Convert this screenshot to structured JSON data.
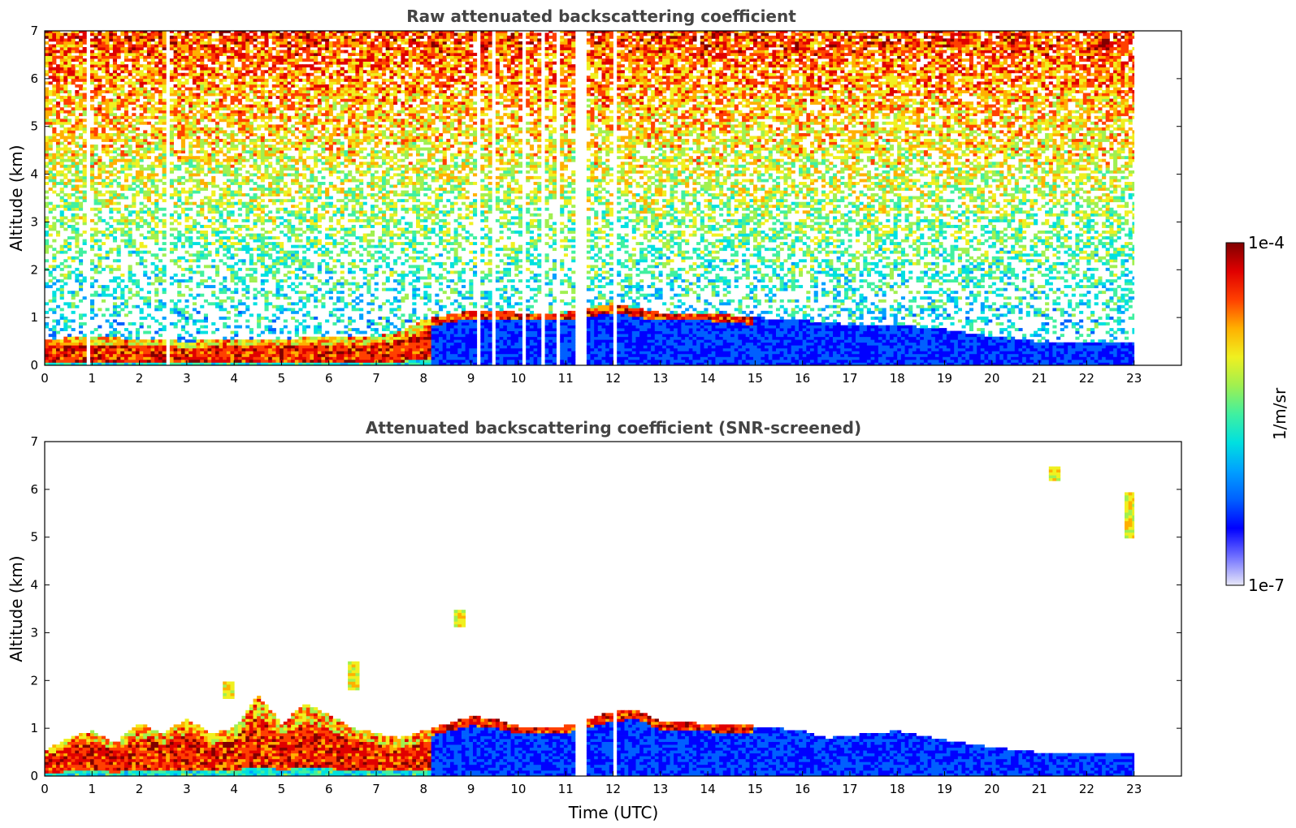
{
  "colors": {
    "colormap": [
      "#e8e8f8",
      "#7070ff",
      "#0000ff",
      "#0060ff",
      "#00a0ff",
      "#00e0e0",
      "#40f0a0",
      "#a0f050",
      "#f0f020",
      "#ffb000",
      "#ff4000",
      "#e00000",
      "#800000"
    ],
    "low_signal": "#1e5be6",
    "frame": "#000000"
  },
  "chart_data": [
    {
      "type": "heatmap",
      "title": "Raw attenuated backscattering coefficient",
      "xlabel": "",
      "ylabel": "Altitude (km)",
      "xlim": [
        0,
        24
      ],
      "ylim": [
        0,
        7
      ],
      "xticks": [
        "0",
        "1",
        "2",
        "3",
        "4",
        "5",
        "6",
        "7",
        "8",
        "9",
        "10",
        "11",
        "12",
        "13",
        "14",
        "15",
        "16",
        "17",
        "18",
        "19",
        "20",
        "21",
        "22",
        "23"
      ],
      "yticks": [
        "0",
        "1",
        "2",
        "3",
        "4",
        "5",
        "6",
        "7"
      ],
      "data_end_hour": 23,
      "gaps_hours": [
        [
          11.2,
          11.42
        ],
        [
          12.0,
          12.12
        ],
        [
          2.55,
          2.65
        ],
        [
          0.9,
          0.95
        ],
        [
          9.15,
          9.2
        ],
        [
          9.45,
          9.55
        ],
        [
          10.1,
          10.2
        ],
        [
          10.5,
          10.6
        ],
        [
          10.8,
          10.88
        ]
      ],
      "boundary_layer_top_km": [
        [
          0,
          0.55
        ],
        [
          1,
          0.6
        ],
        [
          2,
          0.55
        ],
        [
          3,
          0.5
        ],
        [
          4,
          0.55
        ],
        [
          5,
          0.55
        ],
        [
          6,
          0.6
        ],
        [
          7,
          0.6
        ],
        [
          7.5,
          0.7
        ],
        [
          8,
          0.95
        ],
        [
          8.5,
          1.05
        ],
        [
          9,
          1.15
        ],
        [
          9.5,
          1.15
        ],
        [
          10,
          1.1
        ],
        [
          11,
          1.1
        ],
        [
          12,
          1.3
        ],
        [
          12.5,
          1.2
        ],
        [
          13,
          1.1
        ],
        [
          14,
          1.1
        ],
        [
          15,
          1.0
        ],
        [
          16,
          0.95
        ],
        [
          17,
          0.85
        ],
        [
          18,
          0.85
        ],
        [
          19,
          0.75
        ],
        [
          20,
          0.6
        ],
        [
          21,
          0.5
        ],
        [
          22,
          0.5
        ],
        [
          23,
          0.45
        ]
      ],
      "noise": true
    },
    {
      "type": "heatmap",
      "title": "Attenuated backscattering coefficient (SNR-screened)",
      "xlabel": "Time (UTC)",
      "ylabel": "Altitude (km)",
      "xlim": [
        0,
        24
      ],
      "ylim": [
        0,
        7
      ],
      "xticks": [
        "0",
        "1",
        "2",
        "3",
        "4",
        "5",
        "6",
        "7",
        "8",
        "9",
        "10",
        "11",
        "12",
        "13",
        "14",
        "15",
        "16",
        "17",
        "18",
        "19",
        "20",
        "21",
        "22",
        "23"
      ],
      "yticks": [
        "0",
        "1",
        "2",
        "3",
        "4",
        "5",
        "6",
        "7"
      ],
      "data_end_hour": 23,
      "gaps_hours": [
        [
          11.2,
          11.42
        ],
        [
          12.0,
          12.12
        ]
      ],
      "boundary_layer_top_km": [
        [
          0,
          0.55
        ],
        [
          0.5,
          0.8
        ],
        [
          1,
          0.95
        ],
        [
          1.5,
          0.7
        ],
        [
          2,
          1.1
        ],
        [
          2.5,
          0.9
        ],
        [
          3,
          1.2
        ],
        [
          3.5,
          0.9
        ],
        [
          4,
          1.0
        ],
        [
          4.5,
          1.7
        ],
        [
          5,
          1.1
        ],
        [
          5.5,
          1.5
        ],
        [
          6,
          1.3
        ],
        [
          6.5,
          1.0
        ],
        [
          7,
          0.9
        ],
        [
          7.5,
          0.8
        ],
        [
          8,
          0.95
        ],
        [
          8.5,
          1.1
        ],
        [
          9,
          1.25
        ],
        [
          9.5,
          1.2
        ],
        [
          10,
          1.05
        ],
        [
          11,
          1.05
        ],
        [
          12,
          1.35
        ],
        [
          12.5,
          1.4
        ],
        [
          13,
          1.15
        ],
        [
          14,
          1.1
        ],
        [
          15,
          1.05
        ],
        [
          16,
          0.95
        ],
        [
          16.5,
          0.8
        ],
        [
          17,
          0.85
        ],
        [
          18,
          0.95
        ],
        [
          19,
          0.75
        ],
        [
          20,
          0.6
        ],
        [
          21,
          0.5
        ],
        [
          22,
          0.45
        ],
        [
          23,
          0.45
        ]
      ],
      "isolated_features_km": [
        [
          8.8,
          3.1,
          3.5
        ],
        [
          21.3,
          6.15,
          6.45
        ],
        [
          22.9,
          4.95,
          5.95
        ],
        [
          3.9,
          1.65,
          2.0
        ],
        [
          6.5,
          1.8,
          2.4
        ]
      ],
      "noise": false
    }
  ],
  "colorbar": {
    "label": "1/m/sr",
    "max_label": "1e-4",
    "min_label": "1e-7",
    "scale": "log",
    "range": [
      1e-07,
      0.0001
    ]
  }
}
